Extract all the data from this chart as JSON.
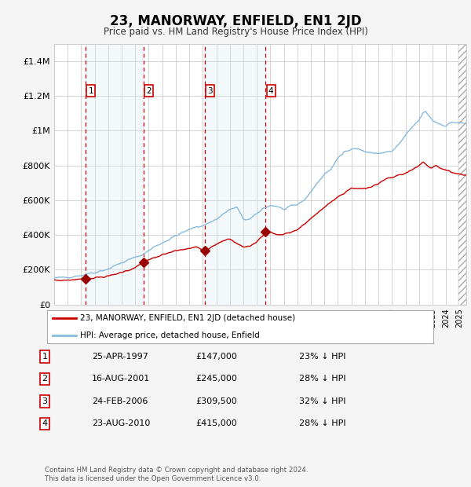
{
  "title": "23, MANORWAY, ENFIELD, EN1 2JD",
  "subtitle": "Price paid vs. HM Land Registry's House Price Index (HPI)",
  "background_color": "#f5f5f5",
  "plot_bg_color": "#ffffff",
  "grid_color": "#cccccc",
  "hpi_line_color": "#88bbdd",
  "price_line_color": "#cc0000",
  "sale_marker_color": "#990000",
  "dashed_line_color": "#cc0000",
  "shade_color": "#d8e8f4",
  "legend_box_color": "#ffffff",
  "footer_text": "Contains HM Land Registry data © Crown copyright and database right 2024.\nThis data is licensed under the Open Government Licence v3.0.",
  "legend_entry1": "23, MANORWAY, ENFIELD, EN1 2JD (detached house)",
  "legend_entry2": "HPI: Average price, detached house, Enfield",
  "sales": [
    {
      "num": 1,
      "date": "25-APR-1997",
      "price": 147000,
      "pct": "23%",
      "dir": "↓",
      "x_year": 1997.32
    },
    {
      "num": 2,
      "date": "16-AUG-2001",
      "price": 245000,
      "pct": "28%",
      "dir": "↓",
      "x_year": 2001.62
    },
    {
      "num": 3,
      "date": "24-FEB-2006",
      "price": 309500,
      "pct": "32%",
      "dir": "↓",
      "x_year": 2006.15
    },
    {
      "num": 4,
      "date": "23-AUG-2010",
      "price": 415000,
      "pct": "28%",
      "dir": "↓",
      "x_year": 2010.65
    }
  ],
  "ylim": [
    0,
    1500000
  ],
  "xlim_start": 1995.0,
  "xlim_end": 2025.5,
  "yticks": [
    0,
    200000,
    400000,
    600000,
    800000,
    1000000,
    1200000,
    1400000
  ],
  "ytick_labels": [
    "£0",
    "£200K",
    "£400K",
    "£600K",
    "£800K",
    "£1M",
    "£1.2M",
    "£1.4M"
  ],
  "hpi_anchors": [
    [
      1995.0,
      150000
    ],
    [
      1996.0,
      158000
    ],
    [
      1997.0,
      168000
    ],
    [
      1998.0,
      185000
    ],
    [
      1999.0,
      205000
    ],
    [
      2000.0,
      240000
    ],
    [
      2001.0,
      270000
    ],
    [
      2001.5,
      285000
    ],
    [
      2002.5,
      335000
    ],
    [
      2003.5,
      375000
    ],
    [
      2004.0,
      395000
    ],
    [
      2005.0,
      430000
    ],
    [
      2005.5,
      445000
    ],
    [
      2006.2,
      460000
    ],
    [
      2007.0,
      490000
    ],
    [
      2007.5,
      520000
    ],
    [
      2008.0,
      545000
    ],
    [
      2008.5,
      560000
    ],
    [
      2009.0,
      490000
    ],
    [
      2009.5,
      490000
    ],
    [
      2010.0,
      520000
    ],
    [
      2010.5,
      555000
    ],
    [
      2011.0,
      570000
    ],
    [
      2011.5,
      565000
    ],
    [
      2012.0,
      545000
    ],
    [
      2013.0,
      575000
    ],
    [
      2013.5,
      600000
    ],
    [
      2014.0,
      650000
    ],
    [
      2014.5,
      700000
    ],
    [
      2015.0,
      750000
    ],
    [
      2015.5,
      780000
    ],
    [
      2016.0,
      840000
    ],
    [
      2016.5,
      880000
    ],
    [
      2017.0,
      900000
    ],
    [
      2017.5,
      895000
    ],
    [
      2018.0,
      880000
    ],
    [
      2018.5,
      870000
    ],
    [
      2019.0,
      870000
    ],
    [
      2019.5,
      875000
    ],
    [
      2020.0,
      880000
    ],
    [
      2020.5,
      920000
    ],
    [
      2021.0,
      970000
    ],
    [
      2021.5,
      1020000
    ],
    [
      2022.0,
      1060000
    ],
    [
      2022.3,
      1100000
    ],
    [
      2022.5,
      1110000
    ],
    [
      2022.8,
      1080000
    ],
    [
      2023.0,
      1060000
    ],
    [
      2023.5,
      1040000
    ],
    [
      2024.0,
      1030000
    ],
    [
      2024.5,
      1050000
    ],
    [
      2025.3,
      1040000
    ]
  ],
  "price_anchors": [
    [
      1995.0,
      140000
    ],
    [
      1995.5,
      138000
    ],
    [
      1996.0,
      140000
    ],
    [
      1996.5,
      142000
    ],
    [
      1997.32,
      147000
    ],
    [
      1998.0,
      153000
    ],
    [
      1999.0,
      162000
    ],
    [
      2000.0,
      185000
    ],
    [
      2001.0,
      210000
    ],
    [
      2001.62,
      245000
    ],
    [
      2002.0,
      258000
    ],
    [
      2002.5,
      268000
    ],
    [
      2003.0,
      285000
    ],
    [
      2003.5,
      298000
    ],
    [
      2004.0,
      308000
    ],
    [
      2004.5,
      315000
    ],
    [
      2005.0,
      322000
    ],
    [
      2005.5,
      330000
    ],
    [
      2006.15,
      309500
    ],
    [
      2006.5,
      325000
    ],
    [
      2007.0,
      348000
    ],
    [
      2007.5,
      368000
    ],
    [
      2008.0,
      375000
    ],
    [
      2008.5,
      350000
    ],
    [
      2009.0,
      332000
    ],
    [
      2009.5,
      335000
    ],
    [
      2010.0,
      360000
    ],
    [
      2010.65,
      415000
    ],
    [
      2011.0,
      418000
    ],
    [
      2011.5,
      400000
    ],
    [
      2012.0,
      405000
    ],
    [
      2012.5,
      415000
    ],
    [
      2013.0,
      430000
    ],
    [
      2013.5,
      460000
    ],
    [
      2014.0,
      495000
    ],
    [
      2014.5,
      525000
    ],
    [
      2015.0,
      560000
    ],
    [
      2015.5,
      590000
    ],
    [
      2016.0,
      620000
    ],
    [
      2016.5,
      640000
    ],
    [
      2016.8,
      660000
    ],
    [
      2017.0,
      668000
    ],
    [
      2017.3,
      668000
    ],
    [
      2017.5,
      665000
    ],
    [
      2018.0,
      668000
    ],
    [
      2018.5,
      680000
    ],
    [
      2019.0,
      695000
    ],
    [
      2019.5,
      720000
    ],
    [
      2020.0,
      730000
    ],
    [
      2020.5,
      745000
    ],
    [
      2021.0,
      755000
    ],
    [
      2021.5,
      775000
    ],
    [
      2022.0,
      800000
    ],
    [
      2022.3,
      820000
    ],
    [
      2022.6,
      800000
    ],
    [
      2022.9,
      785000
    ],
    [
      2023.2,
      800000
    ],
    [
      2023.5,
      790000
    ],
    [
      2024.0,
      770000
    ],
    [
      2024.5,
      760000
    ],
    [
      2025.3,
      745000
    ]
  ]
}
